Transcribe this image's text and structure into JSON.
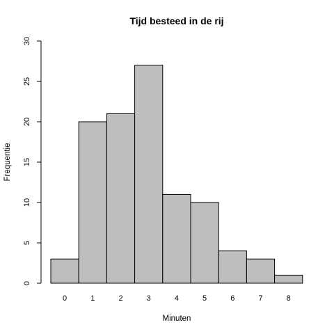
{
  "chart_data": {
    "type": "bar",
    "title": "Tijd besteed in de rij",
    "xlabel": "Minuten",
    "ylabel": "Frequentie",
    "categories": [
      "0",
      "1",
      "2",
      "3",
      "4",
      "5",
      "6",
      "7",
      "8"
    ],
    "values": [
      3,
      20,
      21,
      27,
      11,
      10,
      4,
      3,
      1
    ],
    "ylim": [
      0,
      30
    ],
    "yticks": [
      0,
      5,
      10,
      15,
      20,
      25,
      30
    ],
    "grid": false,
    "legend": "none",
    "bar_color": "#bebebe",
    "edge_color": "#000000"
  }
}
